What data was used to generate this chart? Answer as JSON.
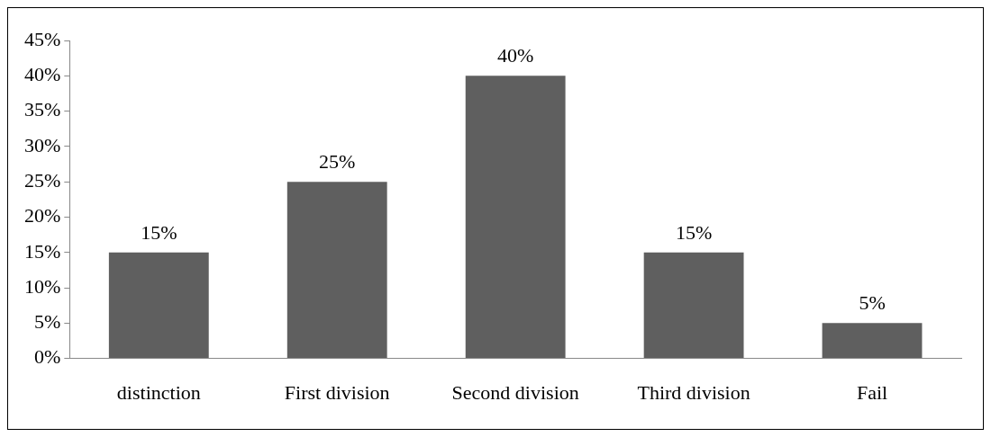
{
  "chart_data": {
    "type": "bar",
    "categories": [
      "distinction",
      "First division",
      "Second division",
      "Third division",
      "Fail"
    ],
    "values": [
      15,
      25,
      40,
      15,
      5
    ],
    "value_labels": [
      "15%",
      "25%",
      "40%",
      "15%",
      "5%"
    ],
    "color": "#5f5f5f",
    "ylim": [
      0,
      45
    ],
    "yticks": [
      {
        "value": 0,
        "label": "0%"
      },
      {
        "value": 5,
        "label": "5%"
      },
      {
        "value": 10,
        "label": "10%"
      },
      {
        "value": 15,
        "label": "15%"
      },
      {
        "value": 20,
        "label": "20%"
      },
      {
        "value": 25,
        "label": "25%"
      },
      {
        "value": 30,
        "label": "30%"
      },
      {
        "value": 35,
        "label": "35%"
      },
      {
        "value": 40,
        "label": "40%"
      },
      {
        "value": 45,
        "label": "45%"
      }
    ],
    "legend": false
  }
}
